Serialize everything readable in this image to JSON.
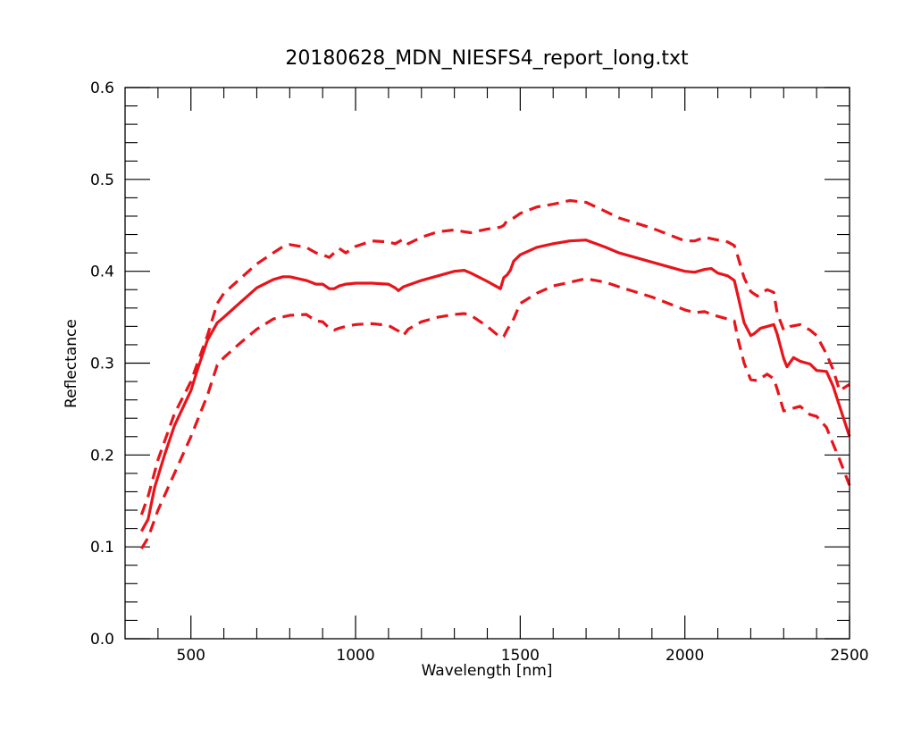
{
  "chart_data": {
    "type": "line",
    "title": "20180628_MDN_NIESFS4_report_long.txt",
    "xlabel": "Wavelength [nm]",
    "ylabel": "Reflectance",
    "xlim": [
      300,
      2500
    ],
    "ylim": [
      0.0,
      0.6
    ],
    "x_ticks": [
      500,
      1000,
      1500,
      2000,
      2500
    ],
    "x_tick_labels": [
      "500",
      "1000",
      "1500",
      "2000",
      "2500"
    ],
    "y_ticks": [
      0.0,
      0.1,
      0.2,
      0.3,
      0.4,
      0.5,
      0.6
    ],
    "y_tick_labels": [
      "0.0",
      "0.1",
      "0.2",
      "0.3",
      "0.4",
      "0.5",
      "0.6"
    ],
    "grid": false,
    "legend": "none",
    "line_color": "#e8141b",
    "series": [
      {
        "style": "solid",
        "x": [
          350,
          370,
          390,
          420,
          450,
          480,
          500,
          520,
          550,
          580,
          600,
          650,
          700,
          750,
          780,
          800,
          850,
          880,
          900,
          920,
          935,
          950,
          970,
          1000,
          1050,
          1100,
          1120,
          1130,
          1145,
          1160,
          1200,
          1250,
          1300,
          1330,
          1350,
          1400,
          1440,
          1450,
          1460,
          1470,
          1480,
          1500,
          1550,
          1600,
          1650,
          1700,
          1760,
          1800,
          1900,
          2000,
          2030,
          2060,
          2080,
          2100,
          2130,
          2150,
          2160,
          2180,
          2200,
          2210,
          2230,
          2250,
          2270,
          2280,
          2300,
          2310,
          2330,
          2350,
          2380,
          2400,
          2430,
          2450,
          2470,
          2500
        ],
        "y": [
          0.117,
          0.13,
          0.165,
          0.2,
          0.232,
          0.255,
          0.27,
          0.293,
          0.325,
          0.344,
          0.35,
          0.366,
          0.382,
          0.391,
          0.394,
          0.394,
          0.39,
          0.386,
          0.386,
          0.381,
          0.381,
          0.384,
          0.386,
          0.387,
          0.387,
          0.386,
          0.382,
          0.379,
          0.383,
          0.385,
          0.39,
          0.395,
          0.4,
          0.401,
          0.398,
          0.389,
          0.381,
          0.393,
          0.396,
          0.401,
          0.411,
          0.418,
          0.426,
          0.43,
          0.433,
          0.434,
          0.426,
          0.42,
          0.41,
          0.4,
          0.399,
          0.402,
          0.403,
          0.398,
          0.395,
          0.39,
          0.375,
          0.344,
          0.33,
          0.332,
          0.338,
          0.34,
          0.342,
          0.332,
          0.305,
          0.296,
          0.306,
          0.302,
          0.299,
          0.292,
          0.291,
          0.275,
          0.253,
          0.22
        ]
      },
      {
        "style": "dashed",
        "x": [
          350,
          370,
          400,
          450,
          500,
          550,
          580,
          600,
          650,
          700,
          750,
          780,
          800,
          850,
          880,
          900,
          920,
          935,
          950,
          970,
          1000,
          1050,
          1100,
          1120,
          1130,
          1145,
          1160,
          1200,
          1250,
          1300,
          1330,
          1350,
          1400,
          1440,
          1450,
          1460,
          1480,
          1500,
          1550,
          1600,
          1650,
          1700,
          1760,
          1800,
          1900,
          2000,
          2030,
          2060,
          2100,
          2130,
          2150,
          2160,
          2180,
          2200,
          2220,
          2250,
          2270,
          2280,
          2300,
          2320,
          2350,
          2380,
          2400,
          2430,
          2450,
          2470,
          2500
        ],
        "y": [
          0.135,
          0.155,
          0.195,
          0.245,
          0.28,
          0.33,
          0.365,
          0.376,
          0.392,
          0.408,
          0.42,
          0.427,
          0.429,
          0.426,
          0.42,
          0.418,
          0.415,
          0.42,
          0.425,
          0.42,
          0.427,
          0.433,
          0.432,
          0.43,
          0.432,
          0.435,
          0.43,
          0.437,
          0.443,
          0.445,
          0.443,
          0.442,
          0.446,
          0.448,
          0.45,
          0.455,
          0.458,
          0.463,
          0.47,
          0.473,
          0.477,
          0.475,
          0.465,
          0.458,
          0.447,
          0.433,
          0.433,
          0.437,
          0.434,
          0.432,
          0.428,
          0.417,
          0.393,
          0.378,
          0.373,
          0.38,
          0.377,
          0.355,
          0.336,
          0.34,
          0.342,
          0.336,
          0.33,
          0.31,
          0.293,
          0.27,
          0.277
        ]
      },
      {
        "style": "dashed",
        "x": [
          350,
          370,
          400,
          450,
          500,
          550,
          580,
          600,
          650,
          700,
          750,
          800,
          850,
          880,
          900,
          920,
          935,
          950,
          970,
          1000,
          1050,
          1100,
          1120,
          1130,
          1145,
          1160,
          1200,
          1250,
          1300,
          1330,
          1350,
          1400,
          1440,
          1450,
          1460,
          1480,
          1500,
          1550,
          1600,
          1650,
          1700,
          1760,
          1800,
          1900,
          2000,
          2030,
          2060,
          2100,
          2130,
          2150,
          2160,
          2180,
          2200,
          2220,
          2250,
          2270,
          2280,
          2300,
          2320,
          2350,
          2380,
          2400,
          2430,
          2450,
          2470,
          2500
        ],
        "y": [
          0.098,
          0.11,
          0.14,
          0.18,
          0.22,
          0.265,
          0.298,
          0.306,
          0.322,
          0.337,
          0.348,
          0.352,
          0.353,
          0.346,
          0.345,
          0.338,
          0.336,
          0.338,
          0.34,
          0.342,
          0.343,
          0.341,
          0.337,
          0.335,
          0.33,
          0.337,
          0.345,
          0.35,
          0.353,
          0.354,
          0.352,
          0.34,
          0.328,
          0.329,
          0.336,
          0.348,
          0.365,
          0.376,
          0.384,
          0.388,
          0.392,
          0.388,
          0.383,
          0.372,
          0.358,
          0.355,
          0.356,
          0.351,
          0.348,
          0.346,
          0.328,
          0.3,
          0.282,
          0.281,
          0.288,
          0.283,
          0.272,
          0.248,
          0.25,
          0.253,
          0.244,
          0.242,
          0.23,
          0.212,
          0.195,
          0.167
        ]
      }
    ]
  }
}
